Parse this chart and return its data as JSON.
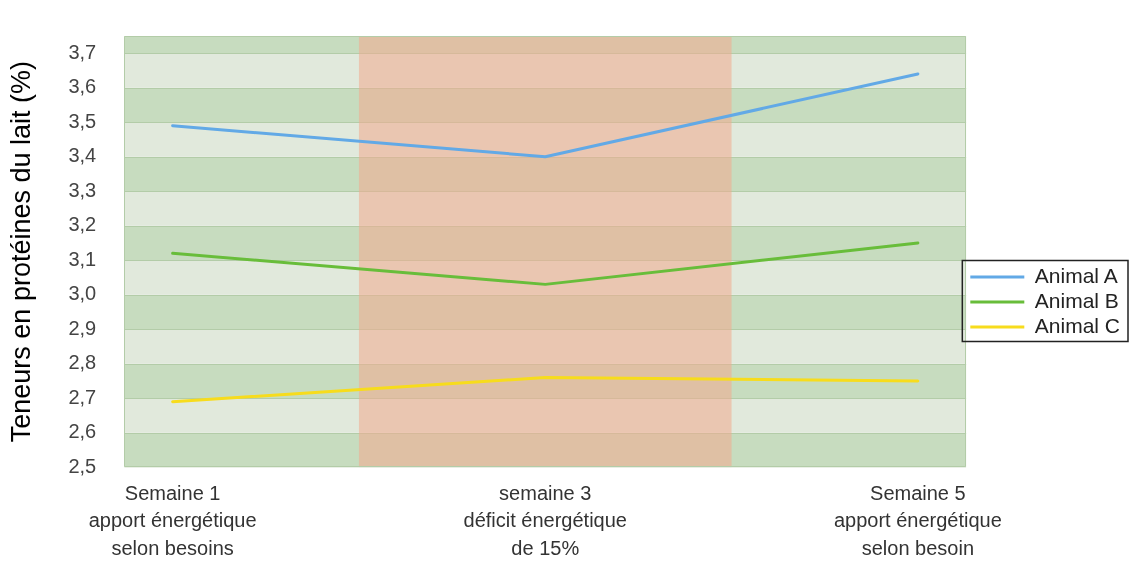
{
  "chart_data": {
    "type": "line",
    "ylabel": "Teneurs en protéines du lait (%)",
    "categories": [
      "Semaine 1\napport énergétique\nselon besoins",
      "semaine 3\ndéficit énergétique\nde 15%",
      "Semaine 5\napport énergétique\nselon besoin"
    ],
    "series": [
      {
        "name": "Animal A",
        "color": "#62a9e6",
        "values": [
          3.49,
          3.4,
          3.64
        ]
      },
      {
        "name": "Animal B",
        "color": "#68bd3a",
        "values": [
          3.12,
          3.03,
          3.15
        ]
      },
      {
        "name": "Animal C",
        "color": "#f7dc1c",
        "values": [
          2.69,
          2.76,
          2.75
        ]
      }
    ],
    "ylim": [
      2.5,
      3.75
    ],
    "yticks": [
      {
        "value": 2.5,
        "label": "2,5"
      },
      {
        "value": 2.6,
        "label": "2,6"
      },
      {
        "value": 2.7,
        "label": "2,7"
      },
      {
        "value": 2.8,
        "label": "2,8"
      },
      {
        "value": 2.9,
        "label": "2,9"
      },
      {
        "value": 3.0,
        "label": "3,0"
      },
      {
        "value": 3.1,
        "label": "3,1"
      },
      {
        "value": 3.2,
        "label": "3,2"
      },
      {
        "value": 3.3,
        "label": "3,3"
      },
      {
        "value": 3.4,
        "label": "3,4"
      },
      {
        "value": 3.5,
        "label": "3,5"
      },
      {
        "value": 3.6,
        "label": "3,6"
      },
      {
        "value": 3.7,
        "label": "3,7"
      }
    ],
    "grid": "y",
    "legend": "right",
    "marker": "none",
    "bands": [
      {
        "axis": "x",
        "from": "semaine 3\ndéficit énergétique\nde 15%",
        "to": "semaine 3\ndéficit énergétique\nde 15%",
        "color": "#f2a98e"
      }
    ]
  }
}
